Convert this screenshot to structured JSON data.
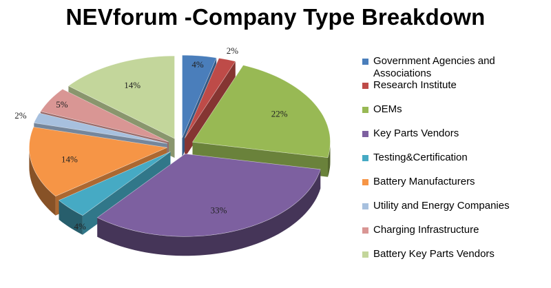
{
  "chart_data": {
    "type": "pie",
    "title": "NEVforum -Company Type Breakdown",
    "legend_position": "right",
    "series": [
      {
        "name": "Government Agencies and Associations",
        "value": 4,
        "label": "4%",
        "color": "#4a7ebb"
      },
      {
        "name": "Research Institute",
        "value": 2,
        "label": "2%",
        "color": "#be4b48"
      },
      {
        "name": "OEMs",
        "value": 22,
        "label": "22%",
        "color": "#98b954"
      },
      {
        "name": "Key Parts Vendors",
        "value": 33,
        "label": "33%",
        "color": "#7d60a0"
      },
      {
        "name": "Testing&Certification",
        "value": 4,
        "label": "4%",
        "color": "#46aac4"
      },
      {
        "name": "Battery Manufacturers",
        "value": 14,
        "label": "14%",
        "color": "#f69546"
      },
      {
        "name": "Utility and Energy Companies",
        "value": 2,
        "label": "2%",
        "color": "#a7c0de"
      },
      {
        "name": "Charging Infrastructure",
        "value": 5,
        "label": "5%",
        "color": "#d99694"
      },
      {
        "name": "Battery Key Parts Vendors",
        "value": 14,
        "label": "14%",
        "color": "#c3d69b"
      }
    ]
  }
}
